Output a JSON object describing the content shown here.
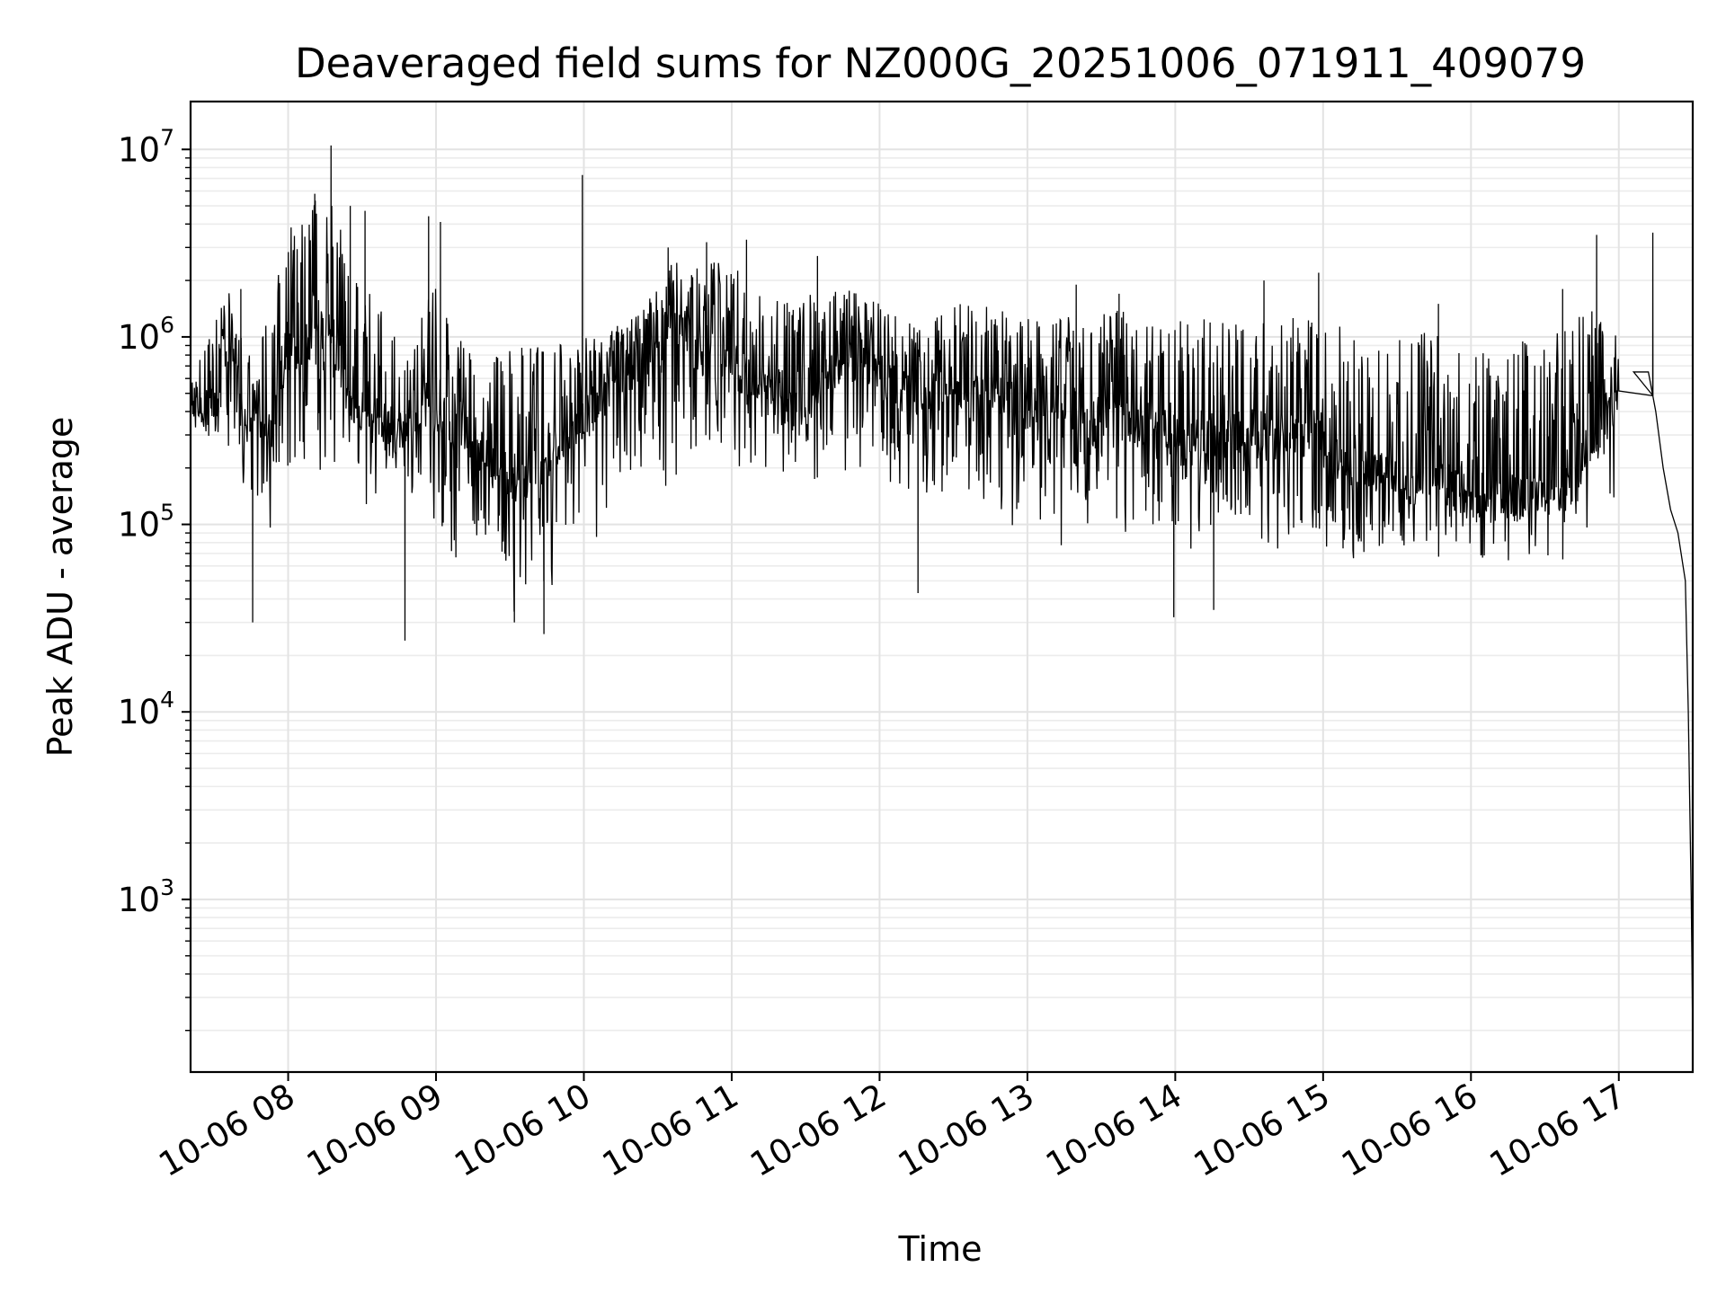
{
  "chart_data": {
    "type": "line",
    "title": "Deaveraged field sums for NZ000G_20251006_071911_409079",
    "xlabel": "Time",
    "ylabel": "Peak ADU - average",
    "yscale": "log",
    "xlim": [
      7.34,
      17.5
    ],
    "ylim": [
      120,
      18000000
    ],
    "x_units": "hours on 2025-10-06",
    "grid": true,
    "line_color": "#000000",
    "x_ticks": [
      {
        "value": 8,
        "label": "10-06 08"
      },
      {
        "value": 9,
        "label": "10-06 09"
      },
      {
        "value": 10,
        "label": "10-06 10"
      },
      {
        "value": 11,
        "label": "10-06 11"
      },
      {
        "value": 12,
        "label": "10-06 12"
      },
      {
        "value": 13,
        "label": "10-06 13"
      },
      {
        "value": 14,
        "label": "10-06 14"
      },
      {
        "value": 15,
        "label": "10-06 15"
      },
      {
        "value": 16,
        "label": "10-06 16"
      },
      {
        "value": 17,
        "label": "10-06 17"
      }
    ],
    "y_ticks": [
      {
        "value": 1000,
        "base": "10",
        "exp": "3"
      },
      {
        "value": 10000,
        "base": "10",
        "exp": "4"
      },
      {
        "value": 100000,
        "base": "10",
        "exp": "5"
      },
      {
        "value": 1000000,
        "base": "10",
        "exp": "6"
      },
      {
        "value": 10000000,
        "base": "10",
        "exp": "7"
      }
    ],
    "series": [
      {
        "name": "Peak ADU - average",
        "x": [
          7.34,
          7.5,
          7.6,
          7.7,
          7.75,
          7.8,
          7.9,
          8.0,
          8.1,
          8.2,
          8.3,
          8.4,
          8.5,
          8.6,
          8.7,
          8.8,
          8.9,
          9.0,
          9.2,
          9.4,
          9.6,
          9.8,
          10.0,
          10.2,
          10.4,
          10.6,
          10.8,
          11.0,
          11.2,
          11.4,
          11.6,
          11.8,
          12.0,
          12.2,
          12.4,
          12.6,
          12.8,
          13.0,
          13.2,
          13.4,
          13.6,
          13.8,
          14.0,
          14.2,
          14.4,
          14.6,
          14.8,
          15.0,
          15.2,
          15.4,
          15.6,
          15.8,
          16.0,
          16.2,
          16.4,
          16.6,
          16.8,
          17.0,
          17.1,
          17.2,
          17.25,
          17.3,
          17.35,
          17.4,
          17.45,
          17.47,
          17.49,
          17.5
        ],
        "y": [
          450000,
          380000,
          800000,
          350000,
          380000,
          400000,
          350000,
          1000000,
          800000,
          1200000,
          1000000,
          500000,
          400000,
          400000,
          300000,
          350000,
          450000,
          400000,
          300000,
          200000,
          180000,
          250000,
          350000,
          600000,
          800000,
          1200000,
          800000,
          700000,
          600000,
          500000,
          550000,
          900000,
          650000,
          500000,
          550000,
          450000,
          500000,
          400000,
          450000,
          400000,
          450000,
          350000,
          300000,
          280000,
          300000,
          320000,
          350000,
          300000,
          200000,
          180000,
          170000,
          160000,
          150000,
          140000,
          140000,
          150000,
          250000,
          550000,
          650000,
          650000,
          400000,
          200000,
          120000,
          90000,
          50000,
          10000,
          1000,
          180
        ]
      }
    ],
    "envelope": {
      "x": [
        7.34,
        7.5,
        7.6,
        7.7,
        7.8,
        7.9,
        8.0,
        8.1,
        8.2,
        8.3,
        8.4,
        8.5,
        8.6,
        8.7,
        8.8,
        8.9,
        9.0,
        9.1,
        9.2,
        9.3,
        9.4,
        9.5,
        9.6,
        9.7,
        9.8,
        9.9,
        10.0,
        10.2,
        10.4,
        10.6,
        10.8,
        11.0,
        11.2,
        11.4,
        11.6,
        11.8,
        12.0,
        12.2,
        12.4,
        12.6,
        12.8,
        13.0,
        13.2,
        13.4,
        13.6,
        13.8,
        14.0,
        14.2,
        14.4,
        14.6,
        14.8,
        15.0,
        15.2,
        15.4,
        15.6,
        15.8,
        16.0,
        16.2,
        16.4,
        16.6,
        16.8,
        17.0
      ],
      "upper": [
        600000,
        1200000,
        1800000,
        1000000,
        900000,
        1600000,
        4500000,
        4000000,
        5800000,
        5000000,
        3000000,
        2000000,
        1500000,
        1300000,
        1200000,
        1300000,
        2000000,
        1200000,
        900000,
        800000,
        850000,
        850000,
        900000,
        900000,
        950000,
        950000,
        1000000,
        1100000,
        1500000,
        2500000,
        2500000,
        2500000,
        1800000,
        1500000,
        1800000,
        1800000,
        1500000,
        1200000,
        1300000,
        1600000,
        1400000,
        1300000,
        1300000,
        1300000,
        1400000,
        1300000,
        1200000,
        1300000,
        1200000,
        1300000,
        1400000,
        1200000,
        1100000,
        1000000,
        1100000,
        1000000,
        900000,
        900000,
        1000000,
        1200000,
        1500000,
        1000000
      ],
      "lower": [
        280000,
        300000,
        250000,
        150000,
        100000,
        70000,
        100000,
        120000,
        110000,
        130000,
        150000,
        120000,
        110000,
        130000,
        120000,
        100000,
        70000,
        60000,
        45000,
        38000,
        35000,
        32000,
        30000,
        33000,
        38000,
        40000,
        50000,
        70000,
        100000,
        150000,
        180000,
        150000,
        140000,
        130000,
        150000,
        140000,
        130000,
        120000,
        110000,
        100000,
        95000,
        80000,
        70000,
        90000,
        90000,
        75000,
        65000,
        60000,
        65000,
        60000,
        60000,
        60000,
        65000,
        60000,
        58000,
        58000,
        60000,
        60000,
        60000,
        62000,
        80000,
        150000
      ]
    },
    "spikes": [
      {
        "x": 7.68,
        "y": 1800000
      },
      {
        "x": 8.29,
        "y": 10500000
      },
      {
        "x": 8.18,
        "y": 5800000
      },
      {
        "x": 8.42,
        "y": 5000000
      },
      {
        "x": 8.52,
        "y": 4700000
      },
      {
        "x": 8.95,
        "y": 4400000
      },
      {
        "x": 9.03,
        "y": 4100000
      },
      {
        "x": 9.99,
        "y": 7300000
      },
      {
        "x": 10.57,
        "y": 3000000
      },
      {
        "x": 10.83,
        "y": 3200000
      },
      {
        "x": 11.1,
        "y": 3300000
      },
      {
        "x": 11.58,
        "y": 2700000
      },
      {
        "x": 13.33,
        "y": 1900000
      },
      {
        "x": 13.62,
        "y": 1700000
      },
      {
        "x": 14.6,
        "y": 2000000
      },
      {
        "x": 14.97,
        "y": 2200000
      },
      {
        "x": 15.78,
        "y": 1500000
      },
      {
        "x": 16.62,
        "y": 1800000
      },
      {
        "x": 16.85,
        "y": 3500000
      },
      {
        "x": 17.23,
        "y": 3600000
      }
    ],
    "dips": [
      {
        "x": 7.76,
        "y": 30000
      },
      {
        "x": 8.79,
        "y": 24000
      },
      {
        "x": 9.53,
        "y": 30000
      },
      {
        "x": 9.73,
        "y": 26000
      },
      {
        "x": 12.26,
        "y": 43000
      },
      {
        "x": 13.99,
        "y": 32000
      },
      {
        "x": 14.26,
        "y": 35000
      }
    ]
  }
}
